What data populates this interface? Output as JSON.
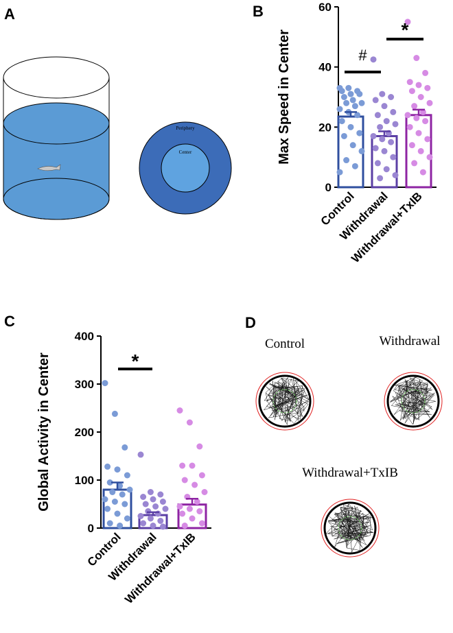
{
  "panel_labels": [
    "A",
    "B",
    "C",
    "D"
  ],
  "arena": {
    "outer": "Periphery",
    "inner": "Center"
  },
  "trajectories": [
    "Control",
    "Withdrawal",
    "Withdrawal+TxIB"
  ],
  "chart_data": [
    {
      "type": "bar",
      "ylabel": "Max Speed in Center",
      "categories": [
        "Control",
        "Withdrawal",
        "Withdrawal+TxIB"
      ],
      "values": [
        23.5,
        17,
        24
      ],
      "errors": [
        1.5,
        1.6,
        1.8
      ],
      "colors": [
        "#7b9bd6",
        "#9a86d2",
        "#d68be4"
      ],
      "edge_colors": [
        "#2f4f9f",
        "#5b3fa5",
        "#8e24a3"
      ],
      "points": [
        [
          33,
          33,
          32,
          32,
          31,
          31,
          30,
          29,
          28,
          28,
          27,
          26,
          25,
          24,
          22,
          20,
          18,
          17,
          14,
          12,
          9,
          7,
          5
        ],
        [
          42.5,
          31,
          30,
          29,
          27,
          25,
          24,
          22,
          21,
          20,
          18,
          17,
          16,
          15,
          13,
          12,
          10,
          8,
          6,
          4,
          3
        ],
        [
          55,
          43,
          38,
          35,
          34,
          33,
          32,
          30,
          28,
          27,
          25,
          24,
          23,
          22,
          20,
          18,
          16,
          14,
          12,
          10,
          8,
          5
        ]
      ],
      "ylim": [
        0,
        60
      ],
      "yticks": [
        0,
        20,
        40,
        60
      ],
      "annotations": [
        "#",
        "*"
      ]
    },
    {
      "type": "bar",
      "ylabel": "Global Activity in Center",
      "categories": [
        "Control",
        "Withdrawal",
        "Withdrawal+TxIB"
      ],
      "values": [
        80,
        27,
        49
      ],
      "errors": [
        15,
        6,
        12
      ],
      "colors": [
        "#7b9bd6",
        "#9a86d2",
        "#d68be4"
      ],
      "edge_colors": [
        "#2f4f9f",
        "#5b3fa5",
        "#8e24a3"
      ],
      "points": [
        [
          302,
          238,
          168,
          128,
          122,
          110,
          95,
          88,
          80,
          75,
          70,
          60,
          55,
          50,
          40,
          30,
          20,
          10,
          5
        ],
        [
          153,
          75,
          70,
          65,
          60,
          55,
          50,
          45,
          40,
          35,
          30,
          25,
          20,
          15,
          10,
          5,
          3
        ],
        [
          245,
          220,
          170,
          130,
          130,
          110,
          100,
          90,
          75,
          65,
          55,
          45,
          40,
          35,
          30,
          20,
          10,
          5
        ]
      ],
      "ylim": [
        0,
        400
      ],
      "yticks": [
        0,
        100,
        200,
        300,
        400
      ],
      "annotations": [
        "*"
      ]
    }
  ]
}
